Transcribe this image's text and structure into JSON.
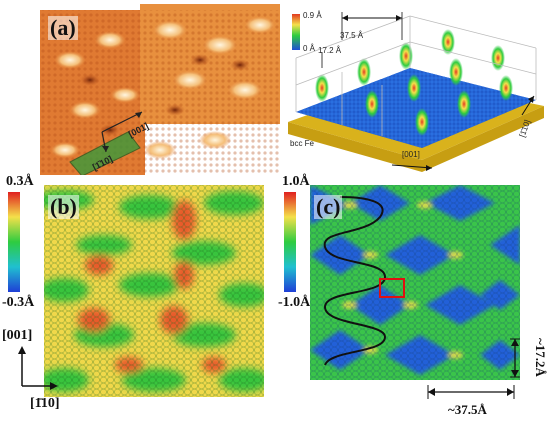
{
  "figure": {
    "panels": {
      "a": {
        "label": "(a)",
        "direction1": "[001]",
        "direction2": "[1̄10]"
      },
      "b": {
        "label": "(b)",
        "colorbar_max": "0.3Å",
        "colorbar_min": "-0.3Å"
      },
      "c": {
        "label": "(c)",
        "colorbar_max": "1.0Å",
        "colorbar_min": "-1.0Å",
        "period_y": "~17.2Å",
        "period_x": "~37.5Å"
      }
    },
    "model3d": {
      "colorbar_max": "0.9 Å",
      "colorbar_min": "0 Å",
      "width_label": "37.5 Å",
      "height_label": "17.2 Å",
      "substrate_label": "bcc Fe",
      "axis_x": "[001]",
      "axis_y": "[1̄10]"
    },
    "axes_left": {
      "y": "[001]",
      "x": "[1̄10]"
    },
    "colors": {
      "stm_orange": "#e6883a",
      "stm_light": "#f5c07a",
      "stm_dark": "#9a3a10",
      "green": "#2ecc40",
      "blue": "#1f6fd6",
      "yellow": "#f4e04a",
      "red": "#e23a20",
      "substrate": "#d9b21c"
    }
  }
}
